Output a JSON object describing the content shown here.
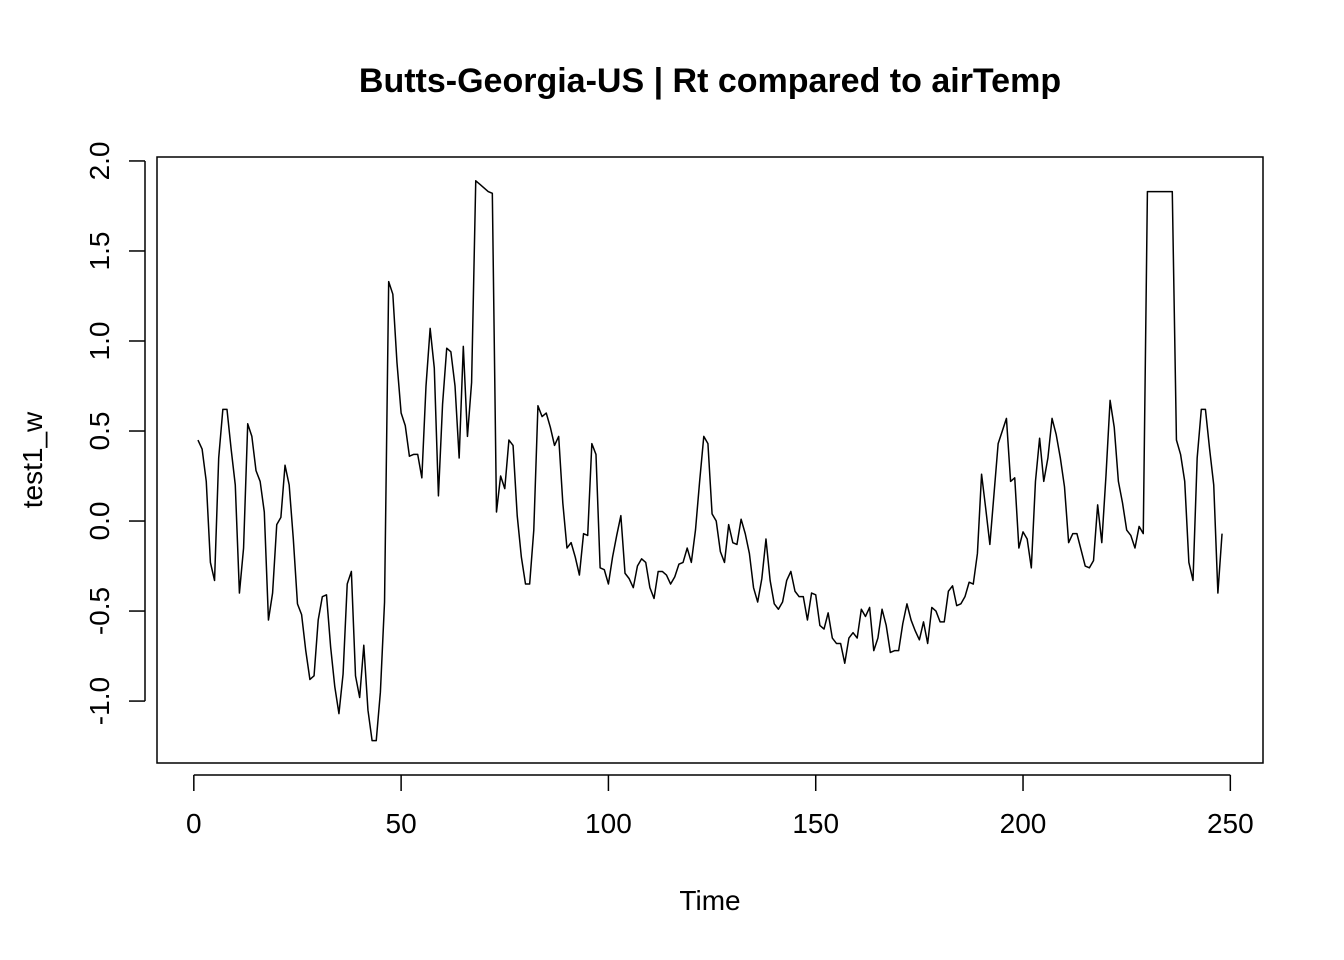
{
  "chart_data": {
    "type": "line",
    "title": "Butts-Georgia-US | Rt compared to airTemp",
    "x_label": "Time",
    "y_label": "test1_w",
    "color": "#000000",
    "x": [
      1,
      2,
      3,
      4,
      5,
      6,
      7,
      8,
      9,
      10,
      11,
      12,
      13,
      14,
      15,
      16,
      17,
      18,
      19,
      20,
      21,
      22,
      23,
      24,
      25,
      26,
      27,
      28,
      29,
      30,
      31,
      32,
      33,
      34,
      35,
      36,
      37,
      38,
      39,
      40,
      41,
      42,
      43,
      44,
      45,
      46,
      47,
      48,
      49,
      50,
      51,
      52,
      53,
      54,
      55,
      56,
      57,
      58,
      59,
      60,
      61,
      62,
      63,
      64,
      65,
      66,
      67,
      68,
      69,
      70,
      71,
      72,
      73,
      74,
      75,
      76,
      77,
      78,
      79,
      80,
      81,
      82,
      83,
      84,
      85,
      86,
      87,
      88,
      89,
      90,
      91,
      92,
      93,
      94,
      95,
      96,
      97,
      98,
      99,
      100,
      101,
      102,
      103,
      104,
      105,
      106,
      107,
      108,
      109,
      110,
      111,
      112,
      113,
      114,
      115,
      116,
      117,
      118,
      119,
      120,
      121,
      122,
      123,
      124,
      125,
      126,
      127,
      128,
      129,
      130,
      131,
      132,
      133,
      134,
      135,
      136,
      137,
      138,
      139,
      140,
      141,
      142,
      143,
      144,
      145,
      146,
      147,
      148,
      149,
      150,
      151,
      152,
      153,
      154,
      155,
      156,
      157,
      158,
      159,
      160,
      161,
      162,
      163,
      164,
      165,
      166,
      167,
      168,
      169,
      170,
      171,
      172,
      173,
      174,
      175,
      176,
      177,
      178,
      179,
      180,
      181,
      182,
      183,
      184,
      185,
      186,
      187,
      188,
      189,
      190,
      191,
      192,
      193,
      194,
      195,
      196,
      197,
      198,
      199,
      200,
      201,
      202,
      203,
      204,
      205,
      206,
      207,
      208,
      209,
      210,
      211,
      212,
      213,
      214,
      215,
      216,
      217,
      218,
      219,
      220,
      221,
      222,
      223,
      224,
      225,
      226,
      227,
      228,
      229,
      230,
      231,
      232,
      233,
      234,
      235,
      236,
      237,
      238,
      239,
      240,
      241,
      242,
      243,
      244,
      245,
      246,
      247,
      248
    ],
    "values": [
      0.45,
      0.4,
      0.22,
      -0.23,
      -0.33,
      0.35,
      0.62,
      0.62,
      0.4,
      0.2,
      -0.4,
      -0.15,
      0.54,
      0.47,
      0.28,
      0.22,
      0.05,
      -0.55,
      -0.4,
      -0.02,
      0.02,
      0.31,
      0.2,
      -0.1,
      -0.46,
      -0.52,
      -0.72,
      -0.88,
      -0.86,
      -0.55,
      -0.42,
      -0.41,
      -0.7,
      -0.92,
      -1.07,
      -0.85,
      -0.35,
      -0.28,
      -0.86,
      -0.98,
      -0.69,
      -1.05,
      -1.22,
      -1.22,
      -0.95,
      -0.45,
      1.33,
      1.26,
      0.88,
      0.6,
      0.53,
      0.36,
      0.37,
      0.37,
      0.24,
      0.75,
      1.07,
      0.85,
      0.14,
      0.65,
      0.96,
      0.94,
      0.75,
      0.35,
      0.97,
      0.47,
      0.77,
      1.89,
      1.87,
      1.85,
      1.83,
      1.82,
      0.05,
      0.25,
      0.18,
      0.45,
      0.42,
      0.03,
      -0.2,
      -0.35,
      -0.35,
      -0.05,
      0.64,
      0.58,
      0.6,
      0.52,
      0.42,
      0.47,
      0.1,
      -0.15,
      -0.12,
      -0.2,
      -0.3,
      -0.07,
      -0.08,
      0.43,
      0.37,
      -0.26,
      -0.27,
      -0.35,
      -0.2,
      -0.08,
      0.03,
      -0.29,
      -0.32,
      -0.37,
      -0.25,
      -0.21,
      -0.23,
      -0.37,
      -0.43,
      -0.28,
      -0.28,
      -0.3,
      -0.35,
      -0.31,
      -0.24,
      -0.23,
      -0.15,
      -0.23,
      -0.05,
      0.22,
      0.47,
      0.43,
      0.04,
      0.0,
      -0.17,
      -0.23,
      -0.02,
      -0.12,
      -0.13,
      0.01,
      -0.07,
      -0.18,
      -0.37,
      -0.45,
      -0.32,
      -0.1,
      -0.33,
      -0.46,
      -0.49,
      -0.45,
      -0.33,
      -0.28,
      -0.39,
      -0.42,
      -0.42,
      -0.55,
      -0.4,
      -0.41,
      -0.58,
      -0.6,
      -0.51,
      -0.65,
      -0.68,
      -0.68,
      -0.79,
      -0.65,
      -0.62,
      -0.65,
      -0.49,
      -0.53,
      -0.48,
      -0.72,
      -0.65,
      -0.49,
      -0.58,
      -0.73,
      -0.72,
      -0.72,
      -0.57,
      -0.46,
      -0.55,
      -0.61,
      -0.66,
      -0.56,
      -0.68,
      -0.48,
      -0.5,
      -0.56,
      -0.56,
      -0.39,
      -0.36,
      -0.47,
      -0.46,
      -0.42,
      -0.34,
      -0.35,
      -0.18,
      0.26,
      0.07,
      -0.13,
      0.15,
      0.43,
      0.5,
      0.57,
      0.22,
      0.24,
      -0.15,
      -0.06,
      -0.1,
      -0.26,
      0.22,
      0.46,
      0.22,
      0.35,
      0.57,
      0.48,
      0.35,
      0.19,
      -0.12,
      -0.07,
      -0.07,
      -0.16,
      -0.25,
      -0.26,
      -0.22,
      0.09,
      -0.12,
      0.25,
      0.67,
      0.52,
      0.22,
      0.1,
      -0.05,
      -0.08,
      -0.15,
      -0.03,
      -0.07,
      1.83,
      1.83,
      1.83,
      1.83,
      1.83,
      1.83,
      1.83,
      0.45,
      0.37,
      0.22,
      -0.23,
      -0.33,
      0.35,
      0.62,
      0.62,
      0.4,
      0.2,
      -0.4,
      -0.07
    ],
    "xlim": [
      -8.88,
      257.88
    ],
    "ylim": [
      -1.344,
      2.022
    ],
    "xticks": [
      0,
      50,
      100,
      150,
      200,
      250
    ],
    "yticks": [
      {
        "value": -1,
        "label": "-1.0"
      },
      -0.5,
      {
        "value": 0,
        "label": "0.0"
      },
      0.5,
      {
        "value": 1,
        "label": "1.0"
      },
      1.5,
      {
        "value": 2,
        "label": "2.0"
      }
    ]
  }
}
